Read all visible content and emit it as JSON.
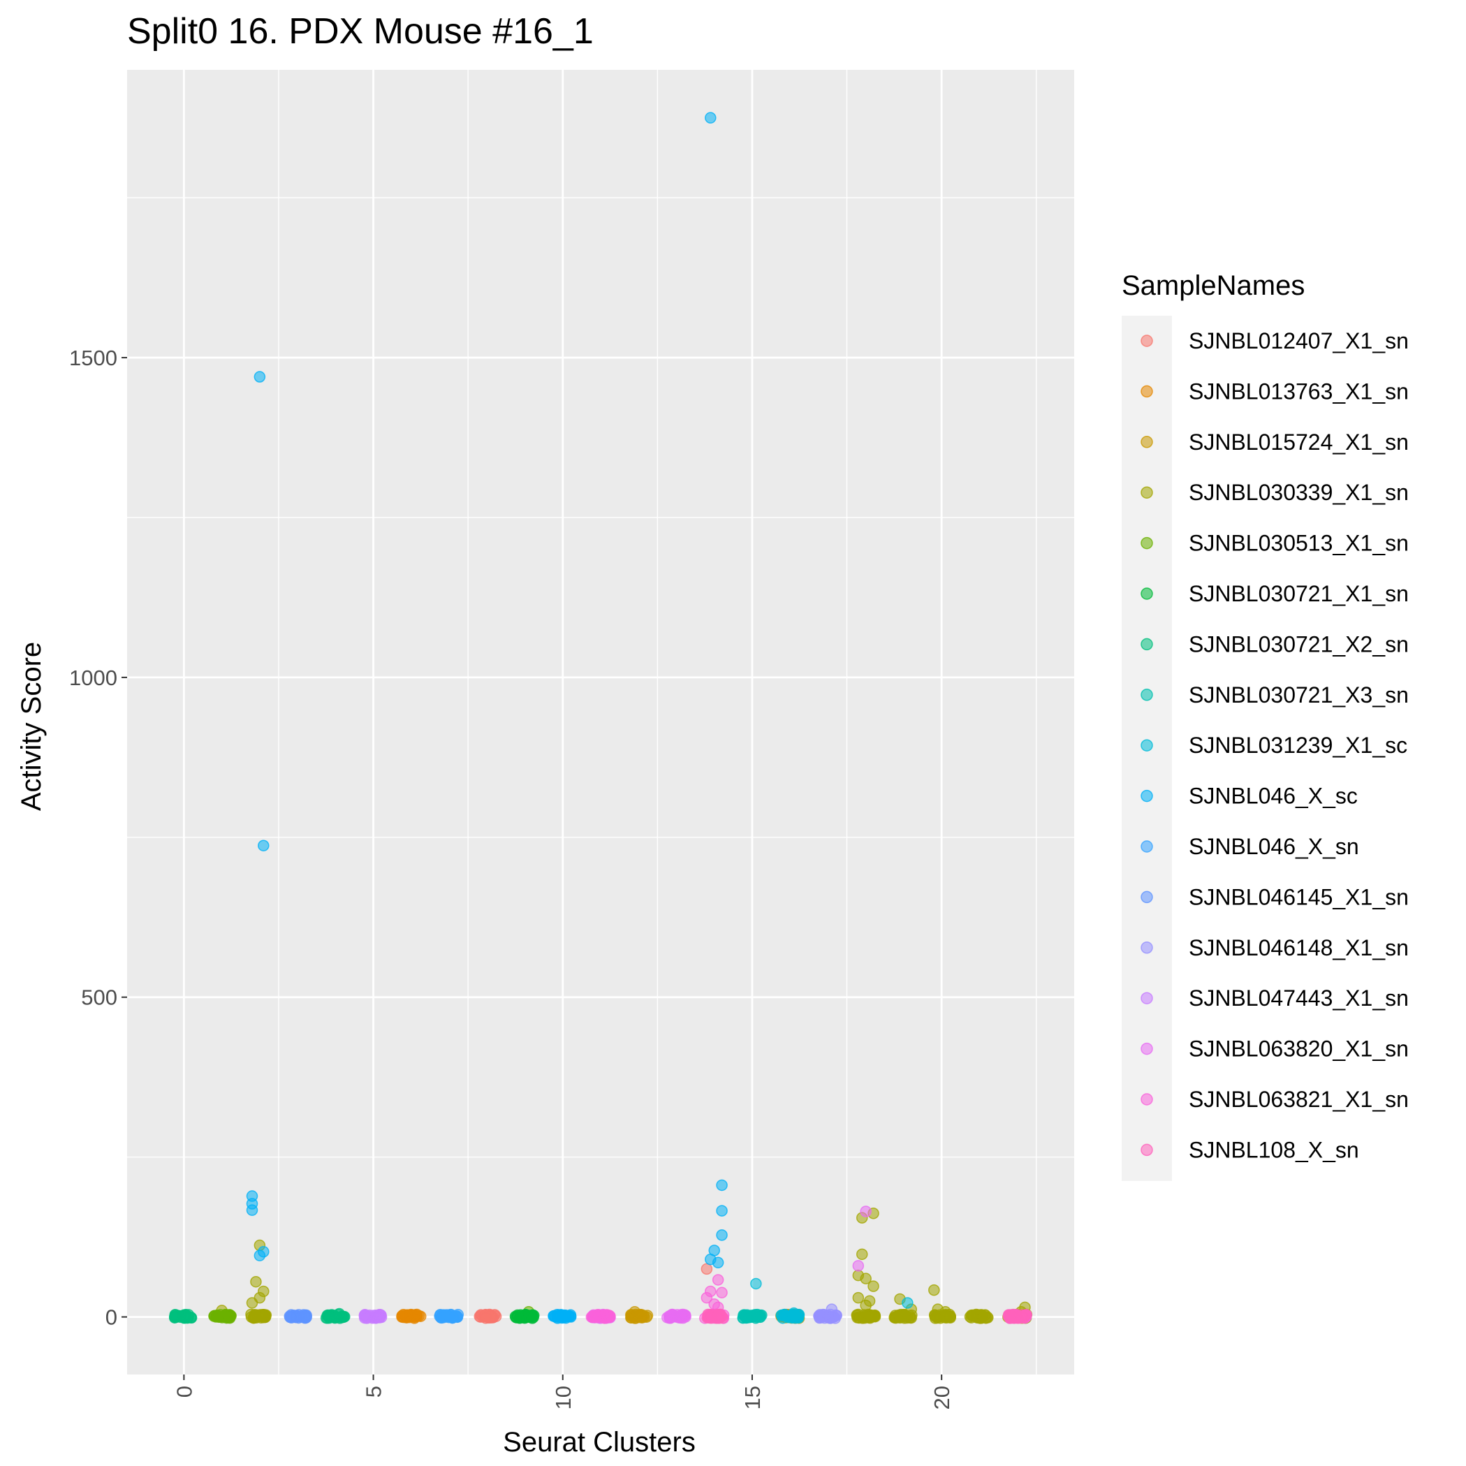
{
  "chart_data": {
    "type": "scatter",
    "title": "Split0 16. PDX Mouse #16_1",
    "xlabel": "Seurat Clusters",
    "ylabel": "Activity Score",
    "xlim": [
      -1.5,
      23.5
    ],
    "ylim": [
      -90,
      1950
    ],
    "x_ticks": [
      0,
      5,
      10,
      15,
      20
    ],
    "x_tick_labels": [
      "0",
      "5",
      "10",
      "15",
      "20"
    ],
    "x_tick_rotation": "vertical",
    "y_ticks": [
      0,
      500,
      1000,
      1500
    ],
    "y_tick_labels": [
      "0",
      "500",
      "1000",
      "1500"
    ],
    "y_minor_ticks": [
      250,
      750,
      1250,
      1750
    ],
    "background": "#ebebeb",
    "grid": true,
    "legend_position": "right",
    "legend_title": "SampleNames",
    "series": [
      {
        "name": "SJNBL012407_X1_sn",
        "color": "#f8766d",
        "clusters": [
          8
        ],
        "points": [
          [
            13.8,
            75
          ]
        ]
      },
      {
        "name": "SJNBL013763_X1_sn",
        "color": "#e58700",
        "clusters": [
          6
        ]
      },
      {
        "name": "SJNBL015724_X1_sn",
        "color": "#c99800",
        "clusters": [
          12,
          16
        ],
        "points": [
          [
            11.9,
            8
          ]
        ]
      },
      {
        "name": "SJNBL030339_X1_sn",
        "color": "#a3a500",
        "clusters": [
          2,
          18,
          19,
          20,
          21,
          22
        ],
        "points": [
          [
            2.0,
            112
          ],
          [
            1.9,
            55
          ],
          [
            2.1,
            40
          ],
          [
            2.0,
            30
          ],
          [
            1.8,
            22
          ],
          [
            17.9,
            155
          ],
          [
            18.2,
            162
          ],
          [
            17.9,
            98
          ],
          [
            17.8,
            65
          ],
          [
            18.0,
            60
          ],
          [
            18.2,
            48
          ],
          [
            17.8,
            30
          ],
          [
            18.1,
            25
          ],
          [
            18.0,
            18
          ],
          [
            18.9,
            28
          ],
          [
            19.2,
            12
          ],
          [
            19.8,
            42
          ],
          [
            19.9,
            12
          ],
          [
            20.1,
            8
          ],
          [
            22.2,
            15
          ],
          [
            22.1,
            8
          ],
          [
            1.0,
            10
          ]
        ]
      },
      {
        "name": "SJNBL030513_X1_sn",
        "color": "#6bb100",
        "clusters": [
          1
        ],
        "points": [
          [
            9.1,
            8
          ]
        ]
      },
      {
        "name": "SJNBL030721_X1_sn",
        "color": "#00ba38",
        "clusters": [
          9
        ]
      },
      {
        "name": "SJNBL030721_X2_sn",
        "color": "#00bf7d",
        "clusters": [
          0,
          4
        ],
        "points": [
          [
            4.1,
            5
          ]
        ]
      },
      {
        "name": "SJNBL030721_X3_sn",
        "color": "#00c0af",
        "clusters": [
          15
        ]
      },
      {
        "name": "SJNBL031239_X1_sc",
        "color": "#00bcd8",
        "clusters": [
          16
        ],
        "points": [
          [
            15.1,
            52
          ],
          [
            16.1,
            6
          ],
          [
            19.1,
            22
          ]
        ]
      },
      {
        "name": "SJNBL046_X_sc",
        "color": "#00b0f6",
        "clusters": [
          10
        ],
        "points": [
          [
            2.0,
            1470
          ],
          [
            2.1,
            737
          ],
          [
            1.8,
            189
          ],
          [
            1.8,
            177
          ],
          [
            1.8,
            167
          ],
          [
            2.1,
            102
          ],
          [
            2.0,
            96
          ],
          [
            13.9,
            1875
          ],
          [
            14.2,
            206
          ],
          [
            14.2,
            166
          ],
          [
            14.2,
            128
          ],
          [
            14.0,
            104
          ],
          [
            14.1,
            85
          ],
          [
            13.9,
            90
          ]
        ]
      },
      {
        "name": "SJNBL046_X_sn",
        "color": "#35a2ff",
        "clusters": [
          7
        ]
      },
      {
        "name": "SJNBL046145_X1_sn",
        "color": "#5e94ff",
        "clusters": [
          3
        ]
      },
      {
        "name": "SJNBL046148_X1_sn",
        "color": "#9590ff",
        "clusters": [
          17
        ],
        "points": [
          [
            17.1,
            12
          ]
        ]
      },
      {
        "name": "SJNBL047443_X1_sn",
        "color": "#c77cff",
        "clusters": [
          5
        ]
      },
      {
        "name": "SJNBL063820_X1_sn",
        "color": "#e76bf3",
        "clusters": [
          13,
          11
        ],
        "points": [
          [
            18.0,
            165
          ],
          [
            17.8,
            80
          ]
        ]
      },
      {
        "name": "SJNBL063821_X1_sn",
        "color": "#fa62db",
        "clusters": [
          11,
          14,
          22
        ],
        "points": [
          [
            13.9,
            40
          ],
          [
            14.1,
            58
          ],
          [
            14.2,
            38
          ],
          [
            13.8,
            30
          ],
          [
            14.0,
            20
          ],
          [
            14.1,
            15
          ]
        ]
      },
      {
        "name": "SJNBL108_X_sn",
        "color": "#ff62bc",
        "clusters": [
          14,
          22
        ]
      }
    ],
    "point_opacity": 0.55
  }
}
